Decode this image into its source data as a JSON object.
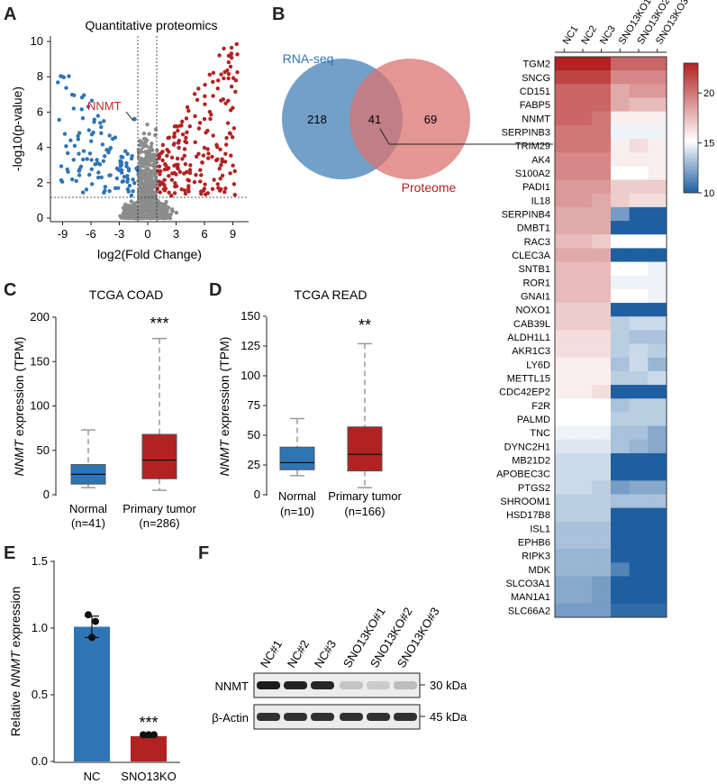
{
  "colors": {
    "blue": "#2e75b6",
    "red": "#b22222",
    "gray": "#8c8c8c",
    "venn_blue": "#5b8fbf",
    "venn_red": "#d9736f"
  },
  "panels": {
    "A": "A",
    "B": "B",
    "C": "C",
    "D": "D",
    "E": "E",
    "F": "F"
  },
  "panelA": {
    "title": "Quantitative proteomics",
    "xlabel": "log2(Fold Change)",
    "ylabel": "-log10(p-value)",
    "xticks": [
      "-9",
      "-6",
      "-3",
      "0",
      "3",
      "6",
      "9"
    ],
    "yticks": [
      "0",
      "2",
      "4",
      "6",
      "8",
      "10"
    ],
    "label": "NNMT"
  },
  "panelB": {
    "rna": "RNA-seq",
    "prot": "Proteome",
    "only_rna": "218",
    "overlap": "41",
    "only_prot": "69",
    "columns": [
      "NC1",
      "NC2",
      "NC3",
      "SNO13KO1",
      "SNO13KO2",
      "SNO13KO3"
    ],
    "genes": [
      "TGM2",
      "SNCG",
      "CD151",
      "FABP5",
      "NNMT",
      "SERPINB3",
      "TRIM29",
      "AK4",
      "S100A2",
      "PADI1",
      "IL18",
      "SERPINB4",
      "DMBT1",
      "RAC3",
      "CLEC3A",
      "SNTB1",
      "ROR1",
      "GNAI1",
      "NOXO1",
      "CAB39L",
      "ALDH1L1",
      "AKR1C3",
      "LY6D",
      "METTL15",
      "CDC42EP2",
      "F2R",
      "PALMD",
      "TNC",
      "DYNC2H1",
      "MB21D2",
      "APOBEC3C",
      "PTGS2",
      "SHROOM1",
      "HSD17B8",
      "ISL1",
      "EPHB6",
      "RIPK3",
      "MDK",
      "SLCO3A1",
      "MAN1A1",
      "SLC66A2"
    ],
    "scale_ticks": [
      "20",
      "15",
      "10"
    ]
  },
  "panelC": {
    "title": "TCGA COAD",
    "ylabel_gene": "NNMT",
    "ylabel_rest": " expression (TPM)",
    "yticks": [
      "0",
      "50",
      "100",
      "150",
      "200"
    ],
    "groups": [
      "Normal",
      "Primary tumor"
    ],
    "ns": [
      "(n=41)",
      "(n=286)"
    ],
    "sig": "***"
  },
  "panelD": {
    "title": "TCGA READ",
    "ylabel_gene": "NNMT",
    "ylabel_rest": " expression (TPM)",
    "yticks": [
      "0",
      "25",
      "50",
      "75",
      "100",
      "125",
      "150"
    ],
    "groups": [
      "Normal",
      "Primary tumor"
    ],
    "ns": [
      "(n=10)",
      "(n=166)"
    ],
    "sig": "**"
  },
  "panelE": {
    "ylabel_pre": "Relative ",
    "ylabel_gene": "NNMT",
    "ylabel_post": " expression",
    "yticks": [
      "0.0",
      "0.5",
      "1.0",
      "1.5"
    ],
    "bars": [
      "NC",
      "SNO13KO"
    ],
    "sig": "***"
  },
  "panelF": {
    "lanes": [
      "NC#1",
      "NC#2",
      "NC#3",
      "SNO13KO#1",
      "SNO13KO#2",
      "SNO13KO#3"
    ],
    "rows": [
      "NNMT",
      "β-Actin"
    ],
    "sizes": [
      "30 kDa",
      "45 kDa"
    ]
  },
  "chart_data": [
    {
      "type": "scatter",
      "title": "Quantitative proteomics",
      "xlabel": "log2(Fold Change)",
      "ylabel": "-log10(p-value)",
      "xlim": [
        -10,
        10.5
      ],
      "ylim": [
        0,
        10
      ],
      "threshold_y": 1.3,
      "threshold_x": [
        -1,
        1
      ],
      "highlight": {
        "label": "NNMT",
        "x": -8,
        "y": 6.5
      },
      "series": [
        "down",
        "up",
        "ns"
      ]
    },
    {
      "type": "heatmap",
      "scale": [
        10,
        23
      ],
      "columns": [
        "NC1",
        "NC2",
        "NC3",
        "SNO13KO1",
        "SNO13KO2",
        "SNO13KO3"
      ],
      "values": [
        [
          23,
          23,
          23,
          21,
          21,
          21
        ],
        [
          22,
          22,
          22,
          20,
          20,
          20
        ],
        [
          21,
          21,
          21,
          19,
          19.5,
          19.5
        ],
        [
          21,
          21,
          21,
          19,
          18.5,
          18.5
        ],
        [
          21,
          21,
          20.5,
          17,
          17,
          17
        ],
        [
          20.5,
          20.5,
          20.5,
          16,
          16,
          16
        ],
        [
          20.5,
          20.5,
          20.5,
          17,
          17.5,
          17
        ],
        [
          20,
          20,
          20,
          17,
          17,
          17
        ],
        [
          20,
          20,
          20,
          16.5,
          16.5,
          17
        ],
        [
          19.5,
          19.5,
          19.5,
          18,
          18,
          18
        ],
        [
          19.5,
          19.5,
          19,
          18,
          17.5,
          17.5
        ],
        [
          19,
          19,
          19,
          12.5,
          10,
          10
        ],
        [
          19,
          19,
          19,
          10,
          10,
          10
        ],
        [
          18.5,
          18.5,
          18,
          16.5,
          16.5,
          16.5
        ],
        [
          19,
          19,
          19,
          10,
          10,
          10
        ],
        [
          18.5,
          18.5,
          18.5,
          16.5,
          16.5,
          16
        ],
        [
          18.5,
          18.5,
          18.5,
          16,
          16,
          16
        ],
        [
          18.5,
          18.5,
          18.5,
          16.5,
          16.5,
          16
        ],
        [
          18,
          18,
          18,
          10,
          10,
          10
        ],
        [
          18,
          18,
          18,
          14.5,
          15,
          15
        ],
        [
          17.5,
          17.5,
          17.5,
          14.5,
          14,
          14
        ],
        [
          17.5,
          17.5,
          17.5,
          14.5,
          15,
          14.5
        ],
        [
          17,
          17,
          17,
          14,
          15,
          13.5
        ],
        [
          17,
          17,
          17,
          14.5,
          14.5,
          15
        ],
        [
          17,
          17,
          17.5,
          10,
          10,
          10
        ],
        [
          16.5,
          16.5,
          16.5,
          14,
          14.5,
          14.5
        ],
        [
          16.5,
          16.5,
          16.5,
          14.5,
          14.5,
          14.5
        ],
        [
          16,
          16,
          16,
          14,
          14,
          13
        ],
        [
          15.5,
          15.5,
          15.5,
          14,
          13.5,
          13
        ],
        [
          15,
          15,
          15,
          10,
          10,
          10
        ],
        [
          15,
          15,
          15,
          10,
          10,
          10
        ],
        [
          15,
          15,
          14.5,
          12.5,
          13,
          13
        ],
        [
          14.5,
          14.5,
          14.5,
          14,
          14,
          14
        ],
        [
          14.5,
          14.5,
          14.5,
          10,
          10,
          10
        ],
        [
          14,
          14,
          14,
          10,
          10,
          10
        ],
        [
          14,
          14,
          14,
          10,
          10,
          10
        ],
        [
          13.5,
          13.5,
          13.5,
          10,
          10,
          10
        ],
        [
          13.5,
          13.5,
          13.5,
          11.5,
          10,
          10
        ],
        [
          13,
          13,
          12.5,
          10,
          10,
          10
        ],
        [
          13,
          13,
          12.5,
          10,
          10,
          10
        ],
        [
          12.5,
          12.5,
          12.5,
          10.5,
          10.5,
          10.5
        ]
      ]
    },
    {
      "type": "box",
      "title": "TCGA COAD",
      "ylim": [
        0,
        200
      ],
      "categories": [
        "Normal",
        "Primary tumor"
      ],
      "series": [
        {
          "name": "Normal",
          "min": 8,
          "q1": 12,
          "median": 23,
          "q3": 34,
          "max": 73
        },
        {
          "name": "Primary tumor",
          "min": 5,
          "q1": 18,
          "median": 39,
          "q3": 68,
          "max": 176
        }
      ]
    },
    {
      "type": "box",
      "title": "TCGA READ",
      "ylim": [
        0,
        150
      ],
      "categories": [
        "Normal",
        "Primary tumor"
      ],
      "series": [
        {
          "name": "Normal",
          "min": 16,
          "q1": 21,
          "median": 27,
          "q3": 40,
          "max": 64
        },
        {
          "name": "Primary tumor",
          "min": 6,
          "q1": 20,
          "median": 34,
          "q3": 57,
          "max": 127
        }
      ]
    },
    {
      "type": "bar",
      "ylim": [
        0,
        1.5
      ],
      "categories": [
        "NC",
        "SNO13KO"
      ],
      "values": [
        1.01,
        0.19
      ],
      "errors": [
        0.08,
        0.01
      ],
      "points": [
        [
          1.1,
          1.05,
          0.93
        ],
        [
          0.2,
          0.2,
          0.2
        ]
      ]
    }
  ]
}
